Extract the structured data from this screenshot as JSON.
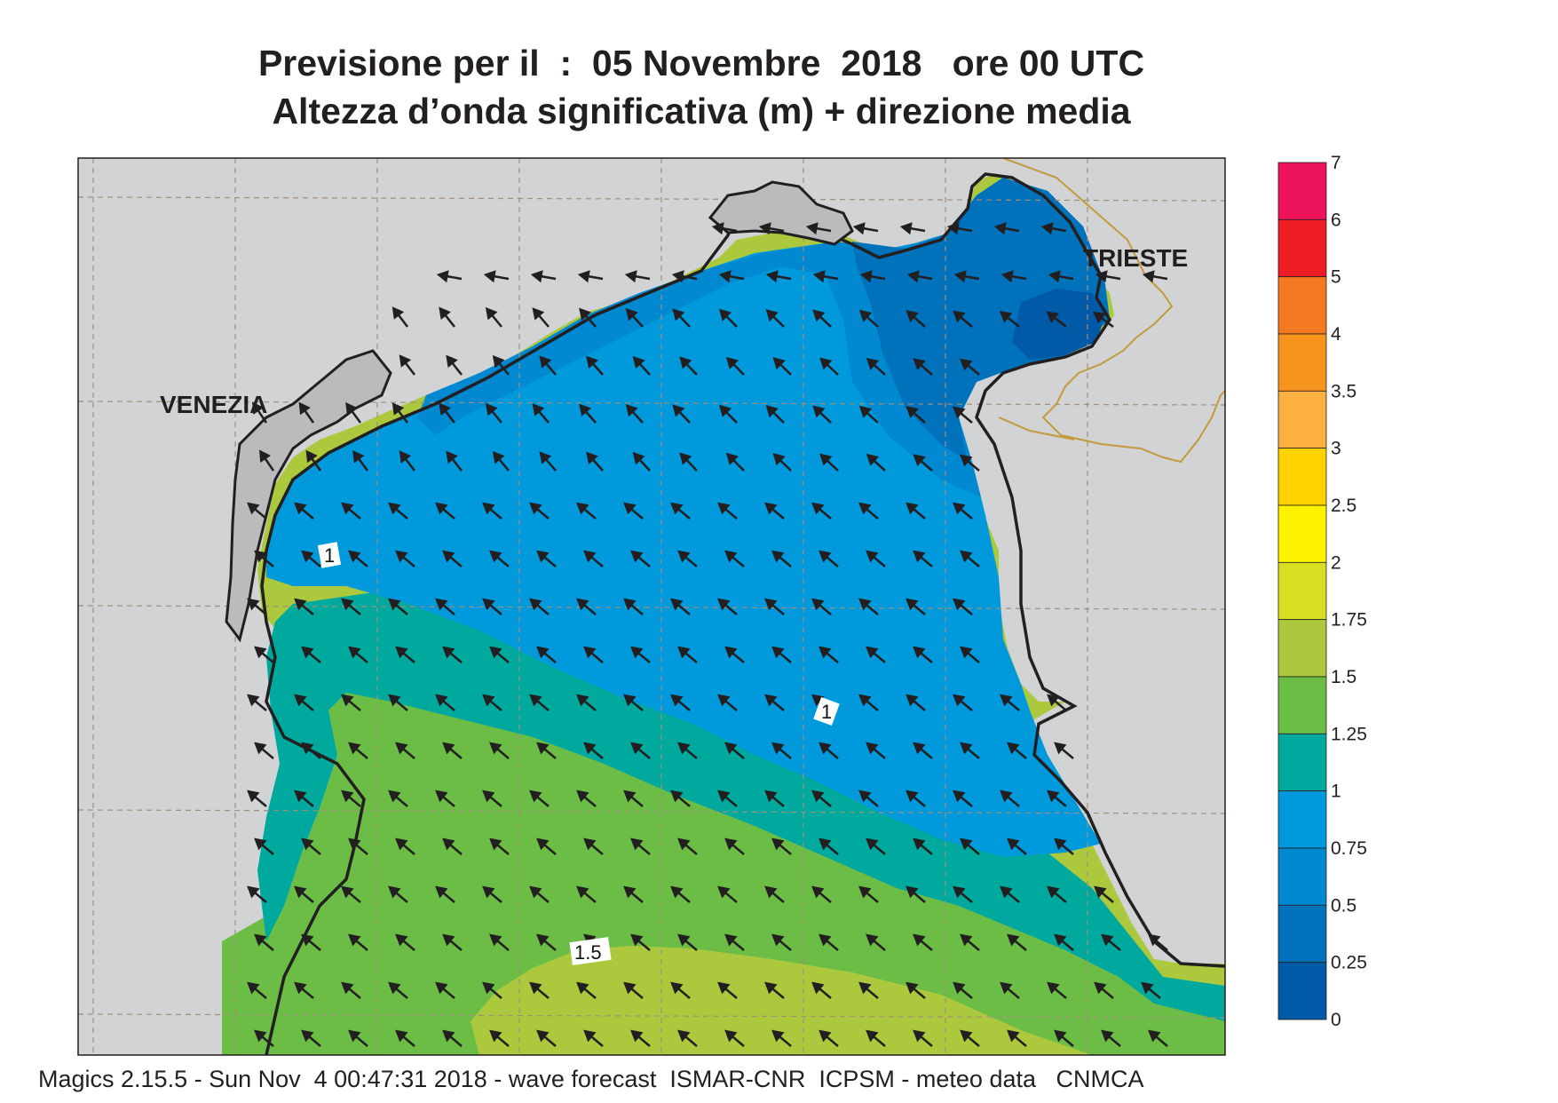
{
  "title": {
    "line1": "Previsione per il  :  05 Novembre  2018   ore 00 UTC",
    "line2": "Altezza d’onda significativa (m) + direzione media"
  },
  "cities": {
    "venezia": "VENEZIA",
    "trieste": "TRIESTE"
  },
  "contour_labels": {
    "a": "1",
    "b": "1",
    "c": "1.5"
  },
  "colorbar": {
    "labels": [
      "7",
      "6",
      "5",
      "4",
      "3.5",
      "3",
      "2.5",
      "2",
      "1.75",
      "1.5",
      "1.25",
      "1",
      "0.75",
      "0.5",
      "0.25",
      "0"
    ],
    "colors": [
      "#ed145b",
      "#ee1c25",
      "#f47920",
      "#f7941d",
      "#fbb040",
      "#ffd200",
      "#fff200",
      "#d7df23",
      "#acc93d",
      "#6bbd45",
      "#00a99d",
      "#0099db",
      "#0088d0",
      "#0072bc",
      "#005aa8"
    ]
  },
  "colors": {
    "land": "#d1d3d4",
    "coast": "#231f20",
    "border": "#c49a3a",
    "wave_0_25": "#005aa8",
    "wave_0_5": "#0072bc",
    "wave_0_75": "#0088d0",
    "wave_1": "#0099db",
    "wave_1_25": "#00a99d",
    "wave_1_5": "#6bbd45",
    "wave_1_75": "#acc93d"
  },
  "footer": "Magics 2.15.5 - Sun Nov  4 00:47:31 2018 - wave forecast  ISMAR-CNR  ICPSM - meteo data   CNMCA"
}
